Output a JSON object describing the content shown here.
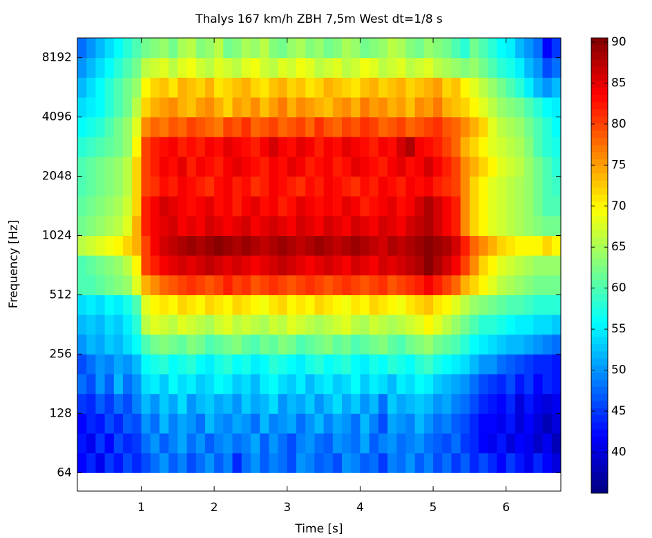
{
  "chart_data": {
    "type": "heatmap",
    "title": "Thalys 167 km/h ZBH 7,5m West dt=1/8 s",
    "x_label": "Time [s]",
    "y_label": "Frequency [Hz]",
    "xlim": [
      0.125,
      6.75
    ],
    "xticks": [
      1,
      2,
      3,
      4,
      5,
      6
    ],
    "ylim": [
      51.6,
      10321
    ],
    "y_log_base": 2,
    "yticks": [
      64,
      128,
      256,
      512,
      1024,
      2048,
      4096,
      8192
    ],
    "colormap": "jet",
    "clim": [
      35,
      90.5
    ],
    "cticks": [
      40,
      45,
      50,
      55,
      60,
      65,
      70,
      75,
      80,
      85,
      90
    ],
    "x": [
      0.1875,
      0.3125,
      0.4375,
      0.5625,
      0.6875,
      0.8125,
      0.9375,
      1.0625,
      1.1875,
      1.3125,
      1.4375,
      1.5625,
      1.6875,
      1.8125,
      1.9375,
      2.0625,
      2.1875,
      2.3125,
      2.4375,
      2.5625,
      2.6875,
      2.8125,
      2.9375,
      3.0625,
      3.1875,
      3.3125,
      3.4375,
      3.5625,
      3.6875,
      3.8125,
      3.9375,
      4.0625,
      4.1875,
      4.3125,
      4.4375,
      4.5625,
      4.6875,
      4.8125,
      4.9375,
      5.0625,
      5.1875,
      5.3125,
      5.4375,
      5.5625,
      5.6875,
      5.8125,
      5.9375,
      6.0625,
      6.1875,
      6.3125,
      6.4375,
      6.5625,
      6.6875
    ],
    "y_edges": [
      64,
      80.6,
      101.6,
      128,
      161.3,
      203.2,
      256,
      322.5,
      406.4,
      512,
      645.1,
      812.7,
      1024,
      1290.2,
      1625.5,
      2048,
      2580.3,
      3251,
      4096,
      5160.6,
      6502,
      8192,
      10321
    ],
    "values": [
      [
        42,
        44,
        41,
        45,
        43,
        46,
        44,
        46,
        48,
        50,
        47,
        49,
        46,
        48,
        50,
        47,
        49,
        44,
        48,
        50,
        47,
        49,
        48,
        46,
        50,
        49,
        47,
        48,
        46,
        50,
        49,
        47,
        48,
        45,
        49,
        48,
        50,
        47,
        49,
        46,
        48,
        45,
        47,
        44,
        46,
        44,
        42,
        45,
        43,
        41,
        44,
        42,
        40
      ],
      [
        43,
        41,
        45,
        42,
        46,
        44,
        45,
        48,
        50,
        47,
        49,
        51,
        48,
        50,
        47,
        49,
        50,
        48,
        49,
        51,
        47,
        50,
        48,
        46,
        49,
        50,
        48,
        47,
        50,
        49,
        48,
        51,
        47,
        49,
        50,
        48,
        49,
        50,
        48,
        47,
        46,
        48,
        45,
        44,
        42,
        41,
        43,
        40,
        42,
        41,
        39,
        41,
        38
      ],
      [
        42,
        44,
        43,
        46,
        44,
        47,
        46,
        50,
        48,
        52,
        49,
        51,
        50,
        48,
        52,
        50,
        49,
        51,
        50,
        48,
        52,
        49,
        50,
        51,
        48,
        50,
        52,
        49,
        51,
        50,
        48,
        52,
        49,
        46,
        51,
        50,
        49,
        52,
        50,
        48,
        49,
        47,
        46,
        44,
        42,
        42,
        41,
        43,
        40,
        42,
        40,
        38,
        40
      ],
      [
        45,
        44,
        47,
        45,
        48,
        46,
        49,
        52,
        50,
        53,
        51,
        54,
        50,
        52,
        53,
        51,
        52,
        50,
        53,
        51,
        52,
        54,
        50,
        52,
        51,
        53,
        50,
        52,
        54,
        51,
        53,
        50,
        52,
        48,
        53,
        51,
        52,
        53,
        52,
        50,
        51,
        49,
        48,
        46,
        44,
        43,
        42,
        44,
        40,
        43,
        41,
        40,
        41
      ],
      [
        48,
        46,
        50,
        47,
        52,
        48,
        50,
        54,
        55,
        53,
        56,
        54,
        55,
        53,
        54,
        56,
        55,
        53,
        54,
        52,
        55,
        56,
        54,
        53,
        55,
        52,
        54,
        55,
        53,
        54,
        56,
        53,
        55,
        54,
        52,
        55,
        54,
        56,
        55,
        53,
        52,
        51,
        50,
        48,
        46,
        45,
        44,
        46,
        43,
        45,
        42,
        44,
        43
      ],
      [
        46,
        48,
        50,
        49,
        51,
        50,
        52,
        56,
        57,
        58,
        56,
        57,
        58,
        56,
        55,
        57,
        58,
        56,
        57,
        55,
        56,
        58,
        57,
        56,
        55,
        57,
        58,
        56,
        57,
        58,
        56,
        55,
        57,
        56,
        58,
        57,
        56,
        58,
        59,
        57,
        56,
        55,
        54,
        52,
        50,
        50,
        48,
        47,
        46,
        45,
        44,
        44,
        43
      ],
      [
        50,
        52,
        51,
        53,
        52,
        54,
        56,
        60,
        62,
        63,
        62,
        61,
        63,
        62,
        60,
        61,
        62,
        63,
        61,
        60,
        62,
        61,
        63,
        62,
        60,
        61,
        62,
        63,
        61,
        62,
        60,
        61,
        62,
        63,
        61,
        60,
        62,
        63,
        64,
        62,
        61,
        60,
        58,
        56,
        55,
        54,
        53,
        52,
        52,
        51,
        50,
        49,
        48
      ],
      [
        52,
        53,
        52,
        54,
        53,
        55,
        58,
        66,
        68,
        67,
        66,
        68,
        67,
        66,
        65,
        67,
        68,
        66,
        67,
        66,
        65,
        67,
        66,
        68,
        67,
        66,
        65,
        66,
        67,
        68,
        66,
        65,
        67,
        66,
        65,
        66,
        67,
        68,
        70,
        68,
        66,
        64,
        62,
        60,
        58,
        58,
        57,
        56,
        55,
        55,
        54,
        54,
        53
      ],
      [
        54,
        55,
        54,
        56,
        55,
        57,
        60,
        68,
        70,
        71,
        70,
        72,
        71,
        70,
        72,
        71,
        70,
        72,
        71,
        70,
        69,
        71,
        72,
        70,
        71,
        70,
        72,
        71,
        70,
        69,
        71,
        70,
        72,
        71,
        70,
        69,
        71,
        72,
        73,
        71,
        70,
        68,
        66,
        64,
        63,
        62,
        61,
        60,
        60,
        59,
        58,
        58,
        58
      ],
      [
        60,
        60,
        61,
        62,
        63,
        64,
        68,
        74,
        76,
        78,
        79,
        80,
        81,
        80,
        79,
        80,
        82,
        80,
        81,
        79,
        80,
        81,
        80,
        79,
        80,
        81,
        80,
        79,
        80,
        81,
        80,
        79,
        80,
        81,
        79,
        80,
        81,
        82,
        84,
        82,
        80,
        78,
        74,
        72,
        70,
        68,
        66,
        65,
        64,
        63,
        62,
        62,
        62
      ],
      [
        60,
        61,
        62,
        63,
        64,
        66,
        70,
        80,
        82,
        84,
        85,
        86,
        85,
        86,
        87,
        86,
        85,
        86,
        85,
        84,
        85,
        86,
        87,
        86,
        85,
        84,
        85,
        86,
        85,
        84,
        86,
        85,
        84,
        86,
        85,
        86,
        87,
        88,
        90,
        88,
        86,
        84,
        80,
        76,
        72,
        70,
        68,
        67,
        66,
        65,
        64,
        64,
        64
      ],
      [
        66,
        67,
        68,
        69,
        70,
        72,
        74,
        80,
        84,
        86,
        87,
        88,
        89,
        88,
        89,
        90,
        89,
        88,
        89,
        88,
        87,
        88,
        89,
        88,
        87,
        88,
        89,
        88,
        87,
        88,
        89,
        88,
        87,
        86,
        88,
        87,
        88,
        89,
        90,
        89,
        88,
        86,
        82,
        78,
        76,
        74,
        72,
        71,
        70,
        70,
        70,
        72,
        70
      ],
      [
        62,
        63,
        64,
        65,
        66,
        68,
        74,
        82,
        84,
        85,
        86,
        84,
        85,
        84,
        86,
        85,
        84,
        85,
        86,
        84,
        85,
        86,
        85,
        84,
        86,
        85,
        84,
        86,
        85,
        84,
        86,
        85,
        84,
        86,
        85,
        84,
        86,
        87,
        88,
        86,
        84,
        82,
        76,
        72,
        70,
        68,
        67,
        66,
        65,
        64,
        63,
        62,
        62
      ],
      [
        61,
        62,
        63,
        64,
        65,
        67,
        72,
        82,
        84,
        86,
        85,
        84,
        83,
        84,
        85,
        83,
        84,
        82,
        84,
        85,
        83,
        84,
        82,
        83,
        85,
        84,
        83,
        84,
        83,
        85,
        84,
        82,
        83,
        84,
        85,
        83,
        84,
        86,
        88,
        86,
        84,
        82,
        76,
        72,
        70,
        68,
        67,
        66,
        65,
        64,
        62,
        60,
        60
      ],
      [
        60,
        61,
        62,
        63,
        64,
        66,
        72,
        80,
        81,
        83,
        82,
        84,
        83,
        82,
        81,
        83,
        84,
        82,
        83,
        81,
        82,
        84,
        83,
        82,
        81,
        83,
        82,
        84,
        83,
        82,
        81,
        83,
        82,
        84,
        83,
        82,
        84,
        83,
        84,
        82,
        81,
        80,
        76,
        72,
        70,
        68,
        67,
        66,
        65,
        64,
        62,
        60,
        59
      ],
      [
        60,
        61,
        62,
        63,
        64,
        66,
        72,
        80,
        82,
        84,
        83,
        85,
        82,
        84,
        83,
        82,
        84,
        85,
        84,
        83,
        82,
        84,
        83,
        85,
        84,
        82,
        83,
        84,
        82,
        83,
        85,
        84,
        83,
        82,
        84,
        85,
        83,
        84,
        86,
        84,
        82,
        80,
        76,
        74,
        72,
        70,
        68,
        67,
        66,
        64,
        62,
        60,
        58
      ],
      [
        58,
        59,
        60,
        61,
        62,
        64,
        70,
        80,
        82,
        83,
        84,
        82,
        83,
        82,
        84,
        83,
        85,
        84,
        83,
        82,
        84,
        86,
        84,
        83,
        85,
        84,
        82,
        84,
        83,
        85,
        84,
        83,
        82,
        84,
        83,
        86,
        88,
        84,
        83,
        82,
        80,
        78,
        74,
        72,
        70,
        68,
        67,
        66,
        65,
        63,
        60,
        58,
        57
      ],
      [
        56,
        57,
        58,
        60,
        62,
        64,
        68,
        76,
        78,
        77,
        79,
        78,
        80,
        79,
        78,
        77,
        80,
        79,
        81,
        78,
        79,
        80,
        78,
        79,
        80,
        78,
        81,
        79,
        78,
        80,
        79,
        81,
        80,
        78,
        79,
        80,
        78,
        79,
        80,
        81,
        79,
        78,
        76,
        74,
        72,
        68,
        66,
        65,
        64,
        62,
        60,
        58,
        56
      ],
      [
        54,
        55,
        56,
        58,
        60,
        62,
        66,
        72,
        74,
        75,
        76,
        74,
        73,
        75,
        76,
        74,
        72,
        75,
        74,
        76,
        73,
        75,
        77,
        74,
        76,
        75,
        74,
        73,
        75,
        76,
        74,
        77,
        75,
        76,
        74,
        75,
        73,
        76,
        75,
        77,
        74,
        73,
        72,
        70,
        68,
        66,
        64,
        63,
        62,
        60,
        58,
        56,
        55
      ],
      [
        52,
        54,
        56,
        58,
        60,
        62,
        64,
        70,
        72,
        73,
        71,
        74,
        73,
        72,
        74,
        71,
        72,
        73,
        74,
        72,
        71,
        73,
        74,
        72,
        73,
        71,
        72,
        74,
        73,
        72,
        71,
        73,
        74,
        72,
        73,
        74,
        72,
        73,
        74,
        75,
        72,
        73,
        70,
        68,
        66,
        64,
        62,
        60,
        58,
        55,
        52,
        50,
        52
      ],
      [
        50,
        52,
        54,
        56,
        58,
        60,
        62,
        66,
        67,
        68,
        66,
        68,
        69,
        67,
        66,
        68,
        67,
        66,
        68,
        69,
        67,
        66,
        68,
        67,
        69,
        68,
        66,
        67,
        68,
        66,
        67,
        69,
        68,
        66,
        67,
        68,
        66,
        67,
        68,
        66,
        65,
        64,
        63,
        64,
        62,
        60,
        58,
        57,
        55,
        52,
        50,
        46,
        48
      ],
      [
        48,
        50,
        52,
        54,
        56,
        58,
        60,
        62,
        63,
        64,
        62,
        65,
        66,
        63,
        64,
        66,
        62,
        63,
        65,
        64,
        66,
        63,
        62,
        64,
        65,
        63,
        64,
        62,
        63,
        65,
        64,
        62,
        63,
        64,
        66,
        65,
        63,
        62,
        64,
        63,
        62,
        60,
        58,
        62,
        60,
        58,
        56,
        55,
        52,
        50,
        48,
        42,
        45
      ]
    ]
  }
}
